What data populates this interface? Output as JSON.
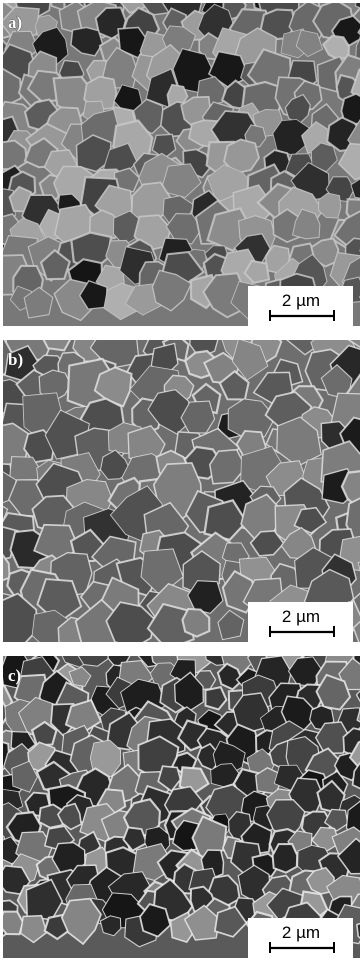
{
  "panels": [
    {
      "label": "a)",
      "scale_bar": "2 µm"
    },
    {
      "label": "b)",
      "scale_bar": "2 µm"
    },
    {
      "label": "c)",
      "scale_bar": "2 µm"
    }
  ]
}
